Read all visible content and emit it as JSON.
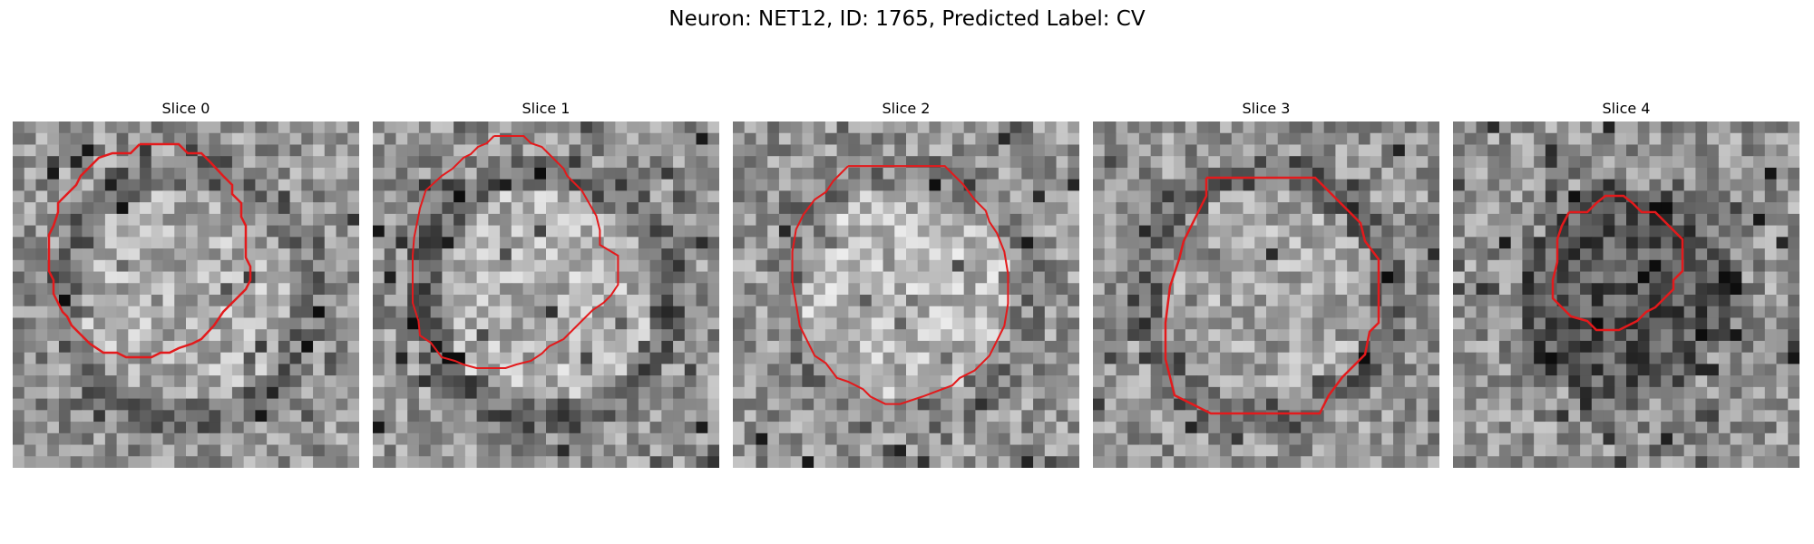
{
  "figure": {
    "title": "Neuron: NET12, ID: 1765, Predicted Label: CV"
  },
  "colors": {
    "contour": "#e31a1c",
    "background": "#ffffff"
  },
  "slices": [
    {
      "title": "Slice 0",
      "seed": 17,
      "center_tone": 0.68,
      "ring_tone": 0.45
    },
    {
      "title": "Slice 1",
      "seed": 29,
      "center_tone": 0.7,
      "ring_tone": 0.4
    },
    {
      "title": "Slice 2",
      "seed": 41,
      "center_tone": 0.72,
      "ring_tone": 0.5
    },
    {
      "title": "Slice 3",
      "seed": 53,
      "center_tone": 0.64,
      "ring_tone": 0.42
    },
    {
      "title": "Slice 4",
      "seed": 67,
      "center_tone": 0.34,
      "ring_tone": 0.55
    }
  ]
}
